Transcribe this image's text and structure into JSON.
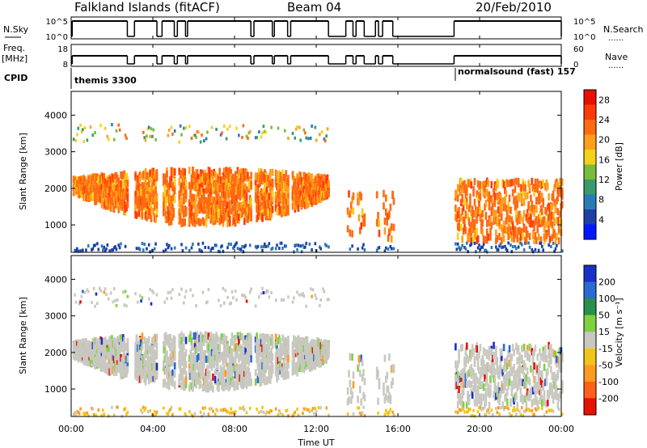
{
  "header": {
    "station": "Falkland Islands (fitACF)",
    "beam": "Beam 04",
    "date": "20/Feb/2010"
  },
  "strip_labels": {
    "nsky": "N.Sky",
    "freq_line1": "Freq.",
    "freq_line2": "[MHz]",
    "cpid": "CPID",
    "nsearch": "N.Search",
    "nave": "Nave",
    "dots": "......"
  },
  "cpid_annotations": [
    {
      "text": "themis 3300",
      "start_hour": 0.0
    },
    {
      "text": "normalsound (fast) 157",
      "start_hour": 18.75
    }
  ],
  "colors": {
    "power": [
      "#0018ff",
      "#1d3fa6",
      "#2a7bb4",
      "#3a9a6b",
      "#79bb3b",
      "#f3d21a",
      "#ffa01c",
      "#ff6a12",
      "#ff3a0a",
      "#e81000"
    ],
    "velocity": [
      "#1a2fc8",
      "#2a6ad2",
      "#2a8f4c",
      "#7fd140",
      "#c8c8c0",
      "#f2c419",
      "#ff9a20",
      "#ff6018",
      "#e81000"
    ]
  },
  "chart_data": [
    {
      "type": "line",
      "name": "N.Sky",
      "x_range_hours": [
        0,
        24
      ],
      "y_labels_left": [
        "10^5",
        "10^0"
      ],
      "y_labels_right": [
        "10^5",
        "10^0"
      ],
      "segments": [
        {
          "start": 0.05,
          "end": 2.75
        },
        {
          "start": 3.1,
          "end": 4.2
        },
        {
          "start": 4.45,
          "end": 5.05
        },
        {
          "start": 5.2,
          "end": 5.6
        },
        {
          "start": 5.7,
          "end": 8.8
        },
        {
          "start": 8.95,
          "end": 9.85
        },
        {
          "start": 9.95,
          "end": 10.6
        },
        {
          "start": 10.75,
          "end": 12.6
        },
        {
          "start": 13.45,
          "end": 13.8
        },
        {
          "start": 13.95,
          "end": 14.35
        },
        {
          "start": 14.9,
          "end": 15.05
        },
        {
          "start": 15.25,
          "end": 15.75
        },
        {
          "start": 18.75,
          "end": 24.0
        }
      ]
    },
    {
      "type": "line",
      "name": "Freq.",
      "x_range_hours": [
        0,
        24
      ],
      "y_labels_left": [
        "18",
        "8"
      ],
      "y_labels_right": [
        "60",
        "0"
      ],
      "segments": [
        {
          "start": 0.05,
          "end": 2.75
        },
        {
          "start": 3.1,
          "end": 4.2
        },
        {
          "start": 4.45,
          "end": 5.05
        },
        {
          "start": 5.2,
          "end": 5.6
        },
        {
          "start": 5.7,
          "end": 8.8
        },
        {
          "start": 8.95,
          "end": 9.85
        },
        {
          "start": 9.95,
          "end": 10.6
        },
        {
          "start": 10.75,
          "end": 12.6
        },
        {
          "start": 13.45,
          "end": 13.8
        },
        {
          "start": 13.95,
          "end": 14.35
        },
        {
          "start": 14.9,
          "end": 15.05
        },
        {
          "start": 15.25,
          "end": 15.75
        },
        {
          "start": 18.75,
          "end": 24.0
        }
      ]
    },
    {
      "type": "heatmap",
      "name": "Power",
      "xlabel": "",
      "ylabel": "Slant Range [km]",
      "x_range_hours": [
        0,
        24
      ],
      "ylim": [
        250,
        4650
      ],
      "yticks": [
        1000,
        2000,
        3000,
        4000
      ],
      "colorbar_label": "Power [dB]",
      "colorbar_ticks": [
        4,
        8,
        12,
        16,
        20,
        24,
        28
      ],
      "colorbar_range": [
        0,
        30
      ]
    },
    {
      "type": "heatmap",
      "name": "Velocity",
      "xlabel": "Time UT",
      "ylabel": "Slant Range [km]",
      "x_range_hours": [
        0,
        24
      ],
      "x_tick_labels": [
        "00:00",
        "04:00",
        "08:00",
        "12:00",
        "16:00",
        "20:00",
        "00:00"
      ],
      "ylim": [
        250,
        4650
      ],
      "yticks": [
        1000,
        2000,
        3000,
        4000
      ],
      "colorbar_label": "Velocity [m s⁻¹]",
      "colorbar_ticks": [
        "200",
        "100",
        "50",
        "15",
        "-15",
        "-50",
        "-100",
        "-200"
      ]
    }
  ]
}
